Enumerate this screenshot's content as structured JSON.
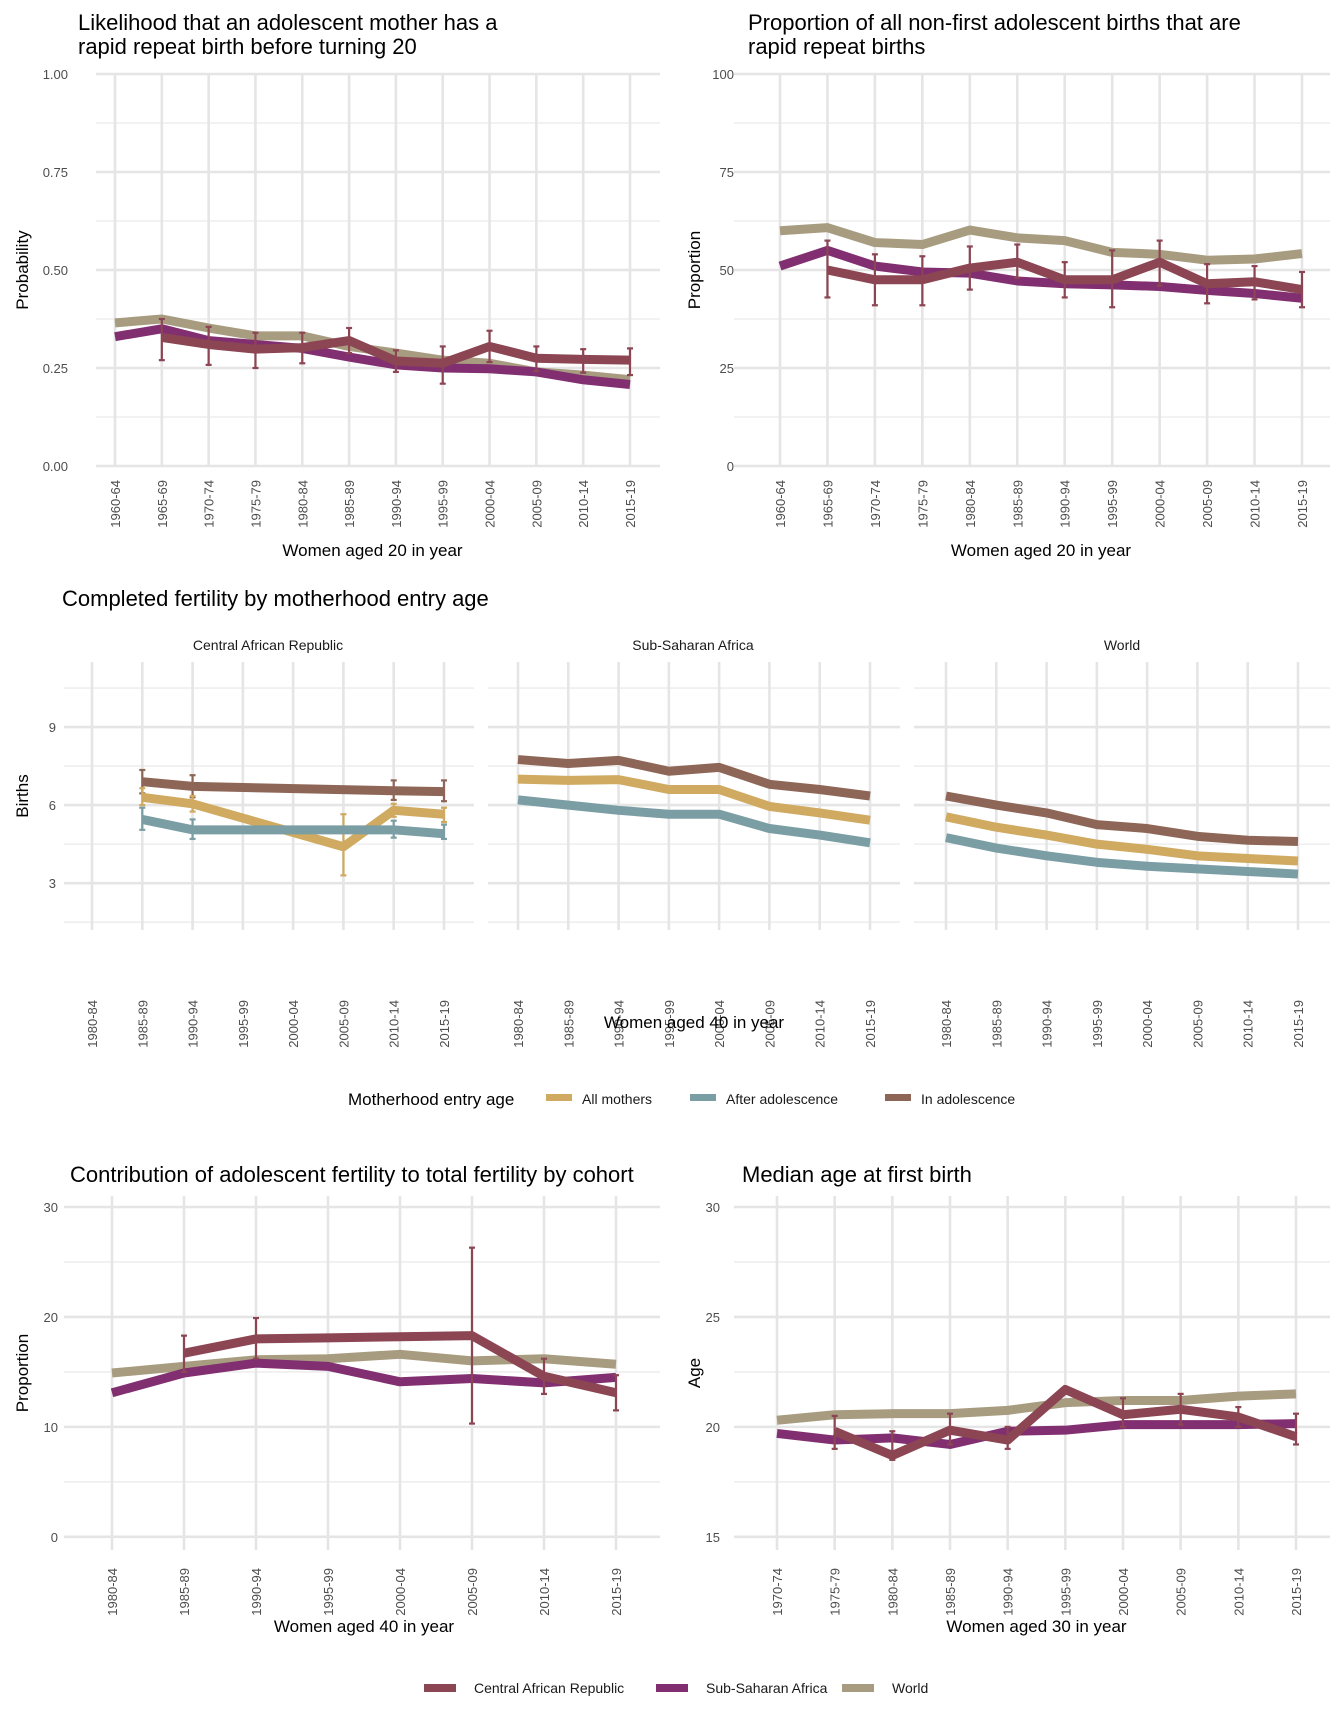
{
  "colors": {
    "car": "#8b4553",
    "ssa": "#812f70",
    "world": "#a89c80",
    "all_mothers": "#cfaa60",
    "after_adolescence": "#7b9ea5",
    "in_adolescence": "#8e6657"
  },
  "chart_data": [
    {
      "id": "rapid-repeat-likelihood",
      "type": "line",
      "title": "Likelihood that an adolescent mother has a rapid repeat birth before turning 20",
      "title_lines": [
        "Likelihood that an adolescent mother has a",
        "rapid repeat birth before turning 20"
      ],
      "xlabel": "Women aged 20 in year",
      "ylabel": "Probability",
      "ylim": [
        0,
        1
      ],
      "yticks": [
        "0.00",
        "0.25",
        "0.50",
        "0.75",
        "1.00"
      ],
      "ytick_values": [
        0,
        0.25,
        0.5,
        0.75,
        1.0
      ],
      "grid": true,
      "categories": [
        "1960-64",
        "1965-69",
        "1970-74",
        "1975-79",
        "1980-84",
        "1985-89",
        "1990-94",
        "1995-99",
        "2000-04",
        "2005-09",
        "2010-14",
        "2015-19"
      ],
      "series": [
        {
          "name": "World",
          "color_key": "world",
          "values": [
            0.365,
            0.375,
            0.352,
            0.332,
            0.332,
            0.305,
            0.288,
            0.27,
            0.262,
            0.24,
            0.232,
            0.22
          ],
          "errors": null
        },
        {
          "name": "Sub-Saharan Africa",
          "color_key": "ssa",
          "values": [
            0.33,
            0.35,
            0.32,
            0.31,
            0.3,
            0.278,
            0.258,
            0.25,
            0.248,
            0.24,
            0.22,
            0.208
          ],
          "errors": null
        },
        {
          "name": "Central African Republic",
          "color_key": "car",
          "values": [
            null,
            0.328,
            0.31,
            0.298,
            0.302,
            0.32,
            0.268,
            0.262,
            0.305,
            0.275,
            0.272,
            0.27
          ],
          "errors": [
            null,
            [
              0.27,
              0.375
            ],
            [
              0.258,
              0.355
            ],
            [
              0.25,
              0.34
            ],
            [
              0.262,
              0.34
            ],
            [
              0.288,
              0.352
            ],
            [
              0.24,
              0.295
            ],
            [
              0.21,
              0.305
            ],
            [
              0.265,
              0.345
            ],
            [
              0.242,
              0.305
            ],
            [
              0.238,
              0.298
            ],
            [
              0.232,
              0.3
            ]
          ]
        }
      ]
    },
    {
      "id": "rapid-repeat-proportion",
      "type": "line",
      "title": "Proportion of all non-first adolescent births that are rapid repeat births",
      "title_lines": [
        "Proportion of all non-first adolescent births that are",
        "rapid repeat births"
      ],
      "xlabel": "Women aged 20 in year",
      "ylabel": "Proportion",
      "ylim": [
        0,
        100
      ],
      "yticks": [
        "0",
        "25",
        "50",
        "75",
        "100"
      ],
      "ytick_values": [
        0,
        25,
        50,
        75,
        100
      ],
      "grid": true,
      "categories": [
        "1960-64",
        "1965-69",
        "1970-74",
        "1975-79",
        "1980-84",
        "1985-89",
        "1990-94",
        "1995-99",
        "2000-04",
        "2005-09",
        "2010-14",
        "2015-19"
      ],
      "series": [
        {
          "name": "World",
          "color_key": "world",
          "values": [
            60.0,
            60.8,
            57.0,
            56.5,
            60.2,
            58.2,
            57.5,
            54.5,
            54.0,
            52.5,
            52.8,
            54.2
          ],
          "errors": null
        },
        {
          "name": "Sub-Saharan Africa",
          "color_key": "ssa",
          "values": [
            51.0,
            55.0,
            51.0,
            49.5,
            49.2,
            47.2,
            46.5,
            46.2,
            45.8,
            44.8,
            44.0,
            42.8
          ],
          "errors": null
        },
        {
          "name": "Central African Republic",
          "color_key": "car",
          "values": [
            null,
            50.0,
            47.5,
            47.5,
            50.5,
            52.0,
            47.5,
            47.5,
            52.0,
            46.5,
            47.0,
            45.0
          ],
          "errors": [
            null,
            [
              43.0,
              57.5
            ],
            [
              41.0,
              54.0
            ],
            [
              41.0,
              53.5
            ],
            [
              45.0,
              56.0
            ],
            [
              48.0,
              56.5
            ],
            [
              43.0,
              52.0
            ],
            [
              40.5,
              55.0
            ],
            [
              46.0,
              57.5
            ],
            [
              41.5,
              51.5
            ],
            [
              42.5,
              51.0
            ],
            [
              40.5,
              49.5
            ]
          ]
        }
      ]
    },
    {
      "id": "completed-fertility",
      "type": "line",
      "title": "Completed fertility by motherhood entry age",
      "xlabel": "Women aged 40 in year",
      "ylabel": "Births",
      "ylim": [
        1.2,
        11.5
      ],
      "yticks": [
        "3",
        "6",
        "9"
      ],
      "ytick_values": [
        3,
        6,
        9
      ],
      "grid": true,
      "categories": [
        "1980-84",
        "1985-89",
        "1990-94",
        "1995-99",
        "2000-04",
        "2005-09",
        "2010-14",
        "2015-19"
      ],
      "legend": {
        "title": "Motherhood entry age",
        "placement": "bottom",
        "entries": [
          {
            "label": "All mothers",
            "color_key": "all_mothers"
          },
          {
            "label": "After adolescence",
            "color_key": "after_adolescence"
          },
          {
            "label": "In adolescence",
            "color_key": "in_adolescence"
          }
        ]
      },
      "facets": [
        {
          "label": "Central African Republic",
          "series": [
            {
              "name": "In adolescence",
              "color_key": "in_adolescence",
              "values": [
                null,
                6.9,
                6.72,
                null,
                null,
                null,
                6.55,
                6.52
              ],
              "errors": [
                null,
                [
                  6.45,
                  7.35
                ],
                [
                  6.3,
                  7.15
                ],
                null,
                null,
                null,
                [
                  6.2,
                  6.95
                ],
                [
                  6.15,
                  6.95
                ]
              ]
            },
            {
              "name": "All mothers",
              "color_key": "all_mothers",
              "values": [
                null,
                6.3,
                6.05,
                null,
                null,
                4.4,
                5.8,
                5.65
              ],
              "errors": [
                null,
                [
                  6.0,
                  6.65
                ],
                [
                  5.75,
                  6.35
                ],
                null,
                null,
                [
                  3.3,
                  5.65
                ],
                [
                  5.55,
                  6.05
                ],
                [
                  5.35,
                  5.9
                ]
              ]
            },
            {
              "name": "After adolescence",
              "color_key": "after_adolescence",
              "values": [
                null,
                5.45,
                5.05,
                null,
                null,
                5.05,
                5.05,
                4.9
              ],
              "errors": [
                null,
                [
                  5.05,
                  5.9
                ],
                [
                  4.7,
                  5.45
                ],
                null,
                null,
                null,
                [
                  4.75,
                  5.4
                ],
                [
                  4.7,
                  5.25
                ]
              ]
            }
          ]
        },
        {
          "label": "Sub-Saharan Africa",
          "series": [
            {
              "name": "In adolescence",
              "color_key": "in_adolescence",
              "values": [
                7.75,
                7.6,
                7.72,
                7.3,
                7.45,
                6.8,
                6.6,
                6.35
              ],
              "errors": null
            },
            {
              "name": "All mothers",
              "color_key": "all_mothers",
              "values": [
                7.0,
                6.95,
                6.98,
                6.6,
                6.6,
                5.95,
                5.7,
                5.42
              ],
              "errors": null
            },
            {
              "name": "After adolescence",
              "color_key": "after_adolescence",
              "values": [
                6.2,
                6.0,
                5.8,
                5.65,
                5.65,
                5.1,
                4.85,
                4.55
              ],
              "errors": null
            }
          ]
        },
        {
          "label": "World",
          "series": [
            {
              "name": "In adolescence",
              "color_key": "in_adolescence",
              "values": [
                6.35,
                6.0,
                5.7,
                5.25,
                5.1,
                4.8,
                4.65,
                4.6
              ],
              "errors": null
            },
            {
              "name": "All mothers",
              "color_key": "all_mothers",
              "values": [
                5.55,
                5.15,
                4.85,
                4.5,
                4.3,
                4.05,
                3.95,
                3.85
              ],
              "errors": null
            },
            {
              "name": "After adolescence",
              "color_key": "after_adolescence",
              "values": [
                4.75,
                4.35,
                4.05,
                3.8,
                3.65,
                3.55,
                3.45,
                3.35
              ],
              "errors": null
            }
          ]
        }
      ]
    },
    {
      "id": "adolescent-contribution",
      "type": "line",
      "title": "Contribution of adolescent fertility to total fertility by cohort",
      "xlabel": "Women aged 40 in year",
      "ylabel": "Proportion",
      "ylim": [
        -1.2,
        31
      ],
      "yticks": [
        "0",
        "10",
        "20",
        "30"
      ],
      "ytick_values": [
        0,
        10,
        20,
        30
      ],
      "grid": true,
      "categories": [
        "1980-84",
        "1985-89",
        "1990-94",
        "1995-99",
        "2000-04",
        "2005-09",
        "2010-14",
        "2015-19"
      ],
      "series": [
        {
          "name": "World",
          "color_key": "world",
          "values": [
            14.9,
            15.5,
            16.1,
            16.2,
            16.6,
            16.0,
            16.2,
            15.7
          ],
          "errors": null
        },
        {
          "name": "Sub-Saharan Africa",
          "color_key": "ssa",
          "values": [
            13.1,
            14.9,
            15.8,
            15.5,
            14.1,
            14.4,
            14.0,
            14.5
          ],
          "errors": null
        },
        {
          "name": "Central African Republic",
          "color_key": "car",
          "values": [
            null,
            16.7,
            18.0,
            18.1,
            18.2,
            18.3,
            14.6,
            13.1
          ],
          "errors": [
            null,
            [
              15.0,
              18.3
            ],
            [
              16.2,
              19.9
            ],
            null,
            null,
            [
              10.3,
              26.3
            ],
            [
              13.0,
              16.2
            ],
            [
              11.5,
              14.7
            ]
          ]
        }
      ]
    },
    {
      "id": "median-age-first-birth",
      "type": "line",
      "title": "Median age at first birth",
      "xlabel": "Women aged 30 in year",
      "ylabel": "Age",
      "ylim": [
        14.4,
        30.5
      ],
      "yticks": [
        "15",
        "20",
        "25",
        "30"
      ],
      "ytick_values": [
        15,
        20,
        25,
        30
      ],
      "grid": true,
      "categories": [
        "1970-74",
        "1975-79",
        "1980-84",
        "1985-89",
        "1990-94",
        "1995-99",
        "2000-04",
        "2005-09",
        "2010-14",
        "2015-19"
      ],
      "series": [
        {
          "name": "World",
          "color_key": "world",
          "values": [
            20.3,
            20.55,
            20.6,
            20.6,
            20.75,
            21.1,
            21.2,
            21.2,
            21.4,
            21.5
          ],
          "errors": null
        },
        {
          "name": "Sub-Saharan Africa",
          "color_key": "ssa",
          "values": [
            19.7,
            19.4,
            19.5,
            19.2,
            19.8,
            19.85,
            20.1,
            20.1,
            20.1,
            20.15
          ],
          "errors": null
        },
        {
          "name": "Central African Republic",
          "color_key": "car",
          "values": [
            null,
            19.8,
            18.7,
            19.85,
            19.4,
            21.7,
            20.55,
            20.8,
            20.45,
            19.55
          ],
          "errors": [
            null,
            [
              19.0,
              20.5
            ],
            [
              18.5,
              19.8
            ],
            [
              19.2,
              20.6
            ],
            [
              19.0,
              20.0
            ],
            null,
            [
              20.0,
              21.3
            ],
            [
              20.1,
              21.5
            ],
            [
              20.0,
              20.9
            ],
            [
              19.2,
              20.6
            ]
          ]
        }
      ],
      "legend": {
        "placement": "bottom",
        "entries": [
          {
            "label": "Central African Republic",
            "color_key": "car"
          },
          {
            "label": "Sub-Saharan Africa",
            "color_key": "ssa"
          },
          {
            "label": "World",
            "color_key": "world"
          }
        ]
      }
    }
  ],
  "legend_regions": {
    "entries": [
      {
        "label": "Central African Republic",
        "color_key": "car"
      },
      {
        "label": "Sub-Saharan Africa",
        "color_key": "ssa"
      },
      {
        "label": "World",
        "color_key": "world"
      }
    ]
  },
  "legend_entry_age": {
    "title": "Motherhood entry age",
    "entries": [
      {
        "label": "All mothers",
        "color_key": "all_mothers"
      },
      {
        "label": "After adolescence",
        "color_key": "after_adolescence"
      },
      {
        "label": "In adolescence",
        "color_key": "in_adolescence"
      }
    ]
  }
}
